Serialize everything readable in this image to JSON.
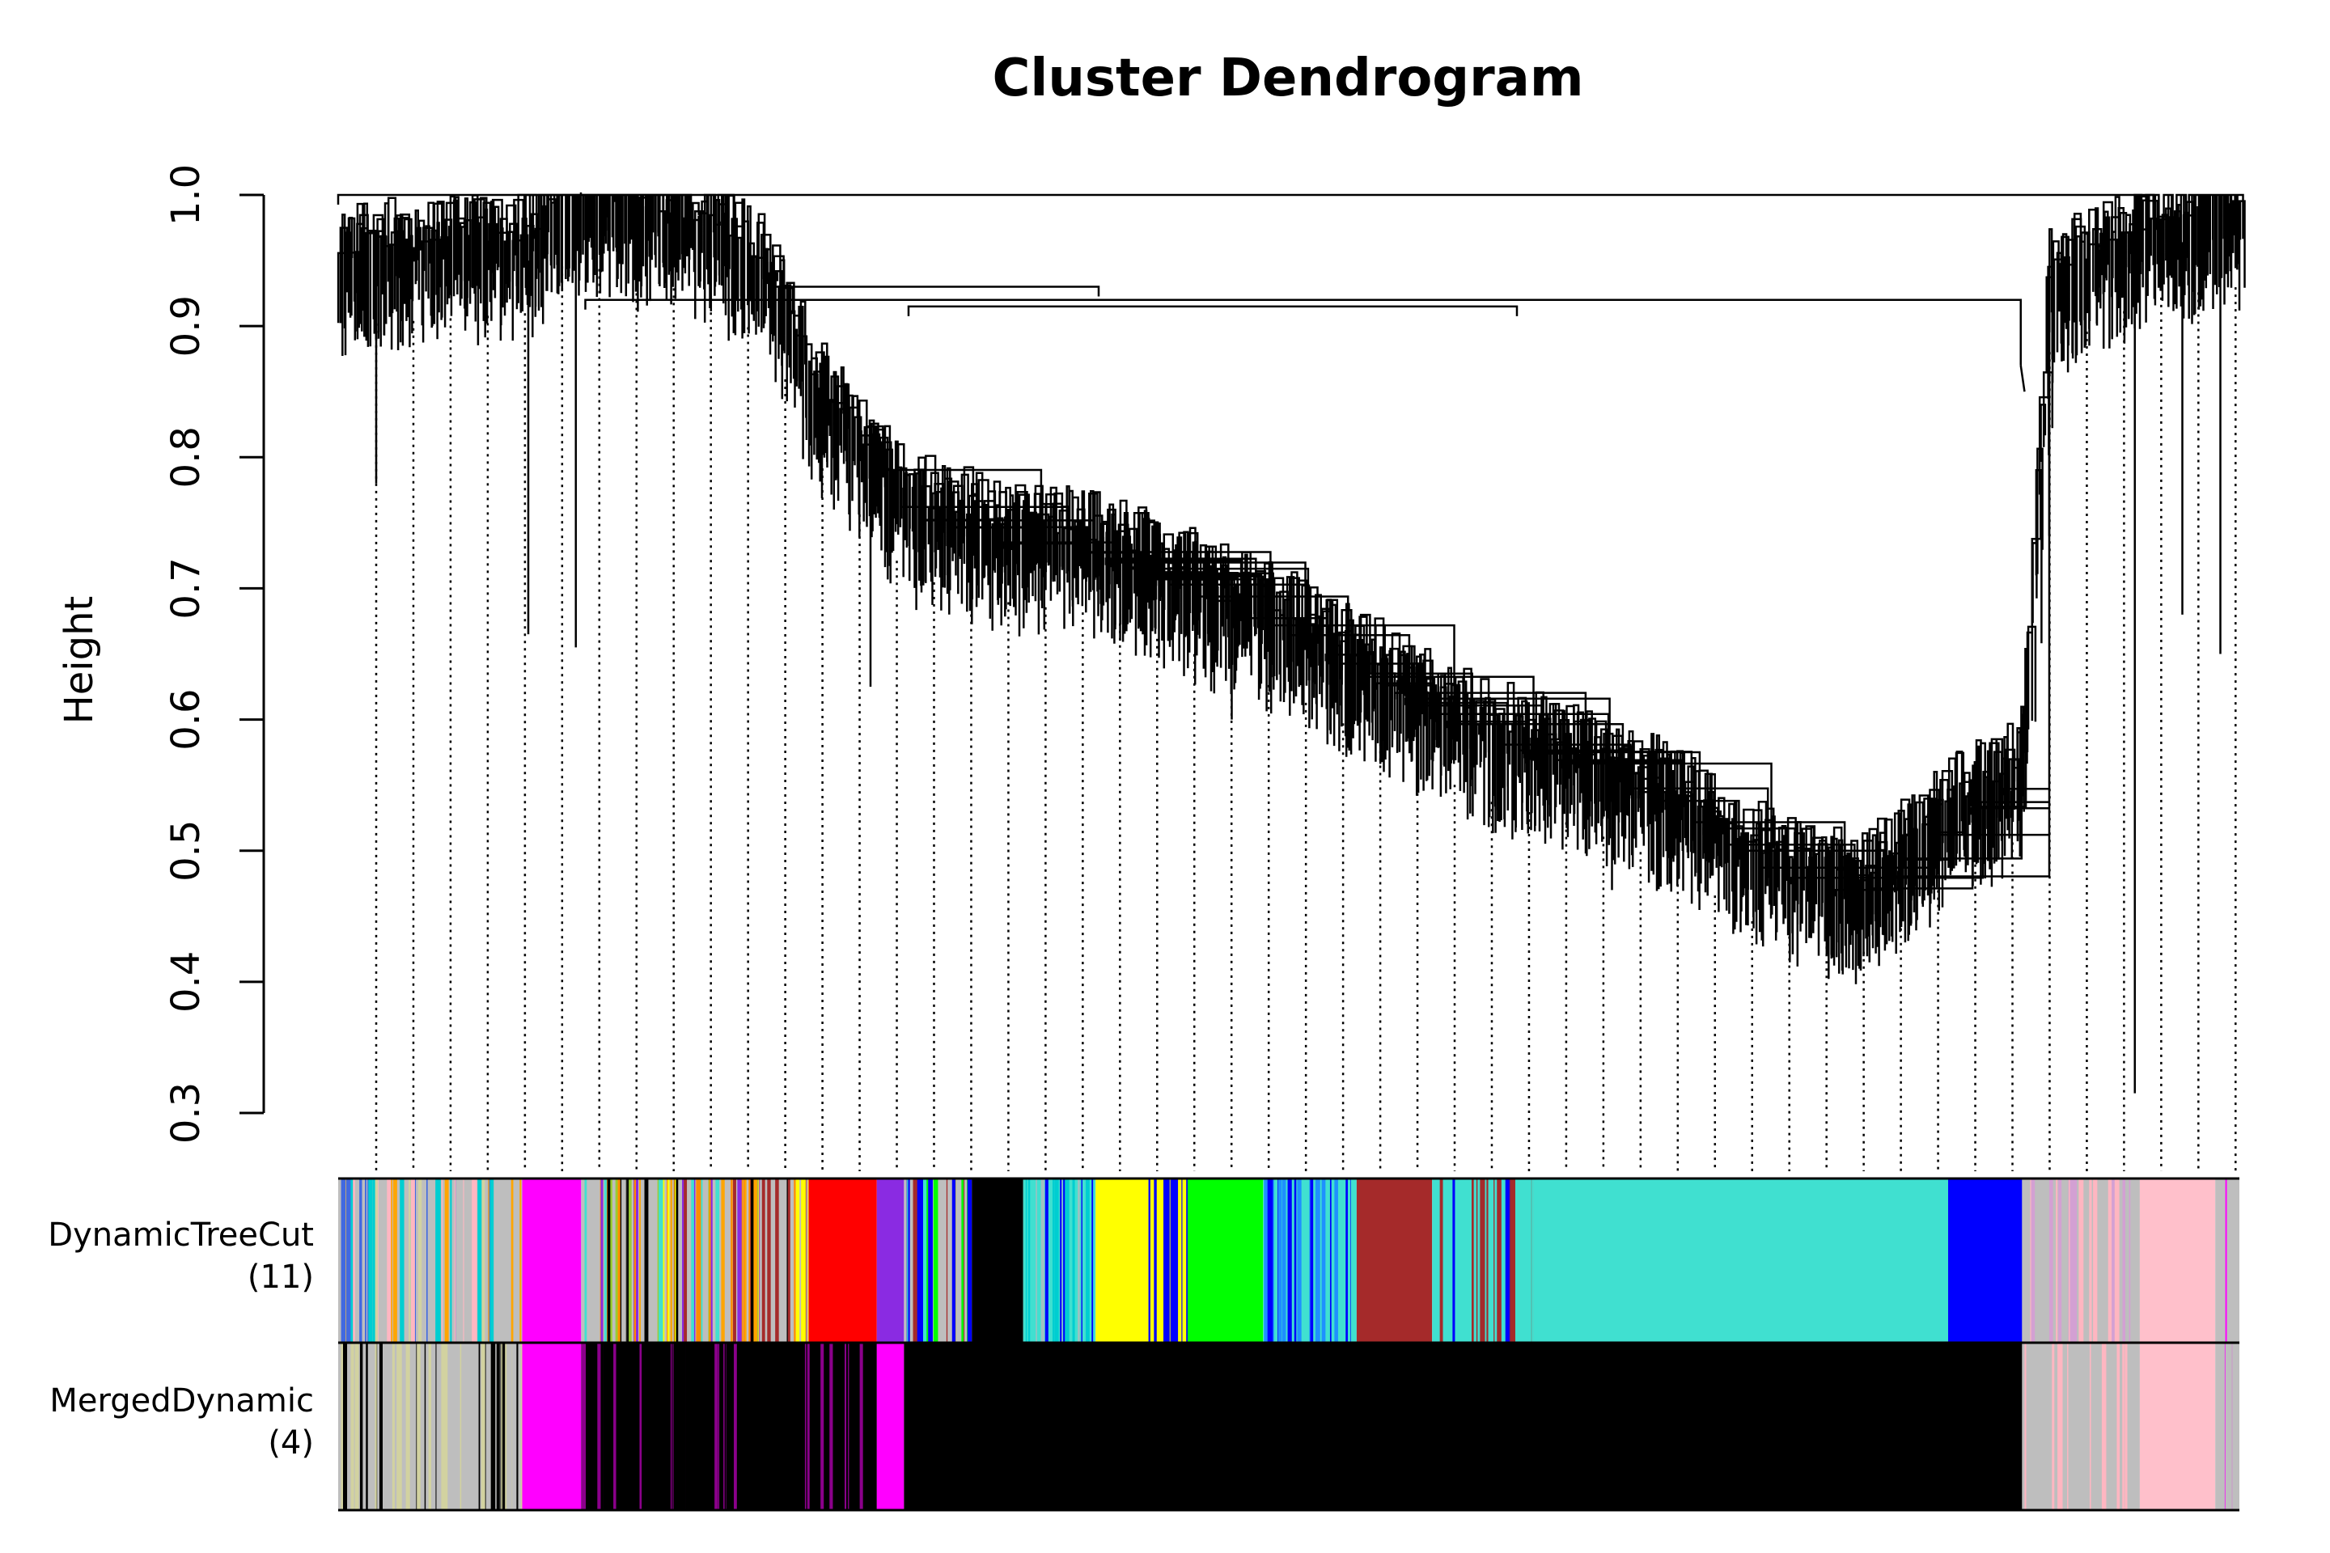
{
  "chart_data": {
    "type": "dendrogram",
    "title": "Cluster Dendrogram",
    "ylabel": "Height",
    "ylim": [
      0.3,
      1.0
    ],
    "y_ticks": [
      "0.3",
      "0.4",
      "0.5",
      "0.6",
      "0.7",
      "0.8",
      "0.9",
      "1.0"
    ],
    "tree": {
      "root_height": 1.0,
      "main_merges": [
        {
          "left": 0.0,
          "right": 0.955,
          "height": 1.0
        },
        {
          "left": 0.13,
          "right": 0.885,
          "height": 0.92
        },
        {
          "left": 0.23,
          "right": 0.4,
          "height": 0.93
        },
        {
          "left": 0.3,
          "right": 0.62,
          "height": 0.915
        }
      ],
      "outline": [
        [
          0.0,
          0.94
        ],
        [
          0.1,
          0.95
        ],
        [
          0.12,
          0.99
        ],
        [
          0.2,
          0.96
        ],
        [
          0.23,
          0.92
        ],
        [
          0.25,
          0.84
        ],
        [
          0.3,
          0.75
        ],
        [
          0.35,
          0.73
        ],
        [
          0.4,
          0.72
        ],
        [
          0.45,
          0.69
        ],
        [
          0.5,
          0.66
        ],
        [
          0.55,
          0.62
        ],
        [
          0.6,
          0.58
        ],
        [
          0.65,
          0.56
        ],
        [
          0.7,
          0.53
        ],
        [
          0.75,
          0.48
        ],
        [
          0.8,
          0.46
        ],
        [
          0.85,
          0.52
        ],
        [
          0.885,
          0.55
        ],
        [
          0.9,
          0.92
        ],
        [
          0.95,
          0.96
        ],
        [
          1.0,
          0.97
        ]
      ],
      "deep_leaves": [
        [
          0.02,
          0.78
        ],
        [
          0.1,
          0.665
        ],
        [
          0.125,
          0.655
        ],
        [
          0.28,
          0.625
        ],
        [
          0.41,
          0.73
        ],
        [
          0.47,
          0.6
        ],
        [
          0.55,
          0.56
        ],
        [
          0.67,
          0.47
        ],
        [
          0.765,
          0.455
        ],
        [
          0.8,
          0.45
        ],
        [
          0.88,
          0.525
        ],
        [
          0.9,
          0.74
        ],
        [
          0.945,
          0.315
        ],
        [
          0.97,
          0.68
        ],
        [
          0.99,
          0.65
        ]
      ]
    },
    "color_bands": [
      {
        "label": "DynamicTreeCut",
        "count": "(11)",
        "segments": [
          {
            "from": 0.0,
            "to": 0.0968,
            "color": "#bebebe",
            "mixed": [
              "#bebebe",
              "#d2d2a0",
              "#ffb6c1",
              "#ffa500",
              "#00ced1",
              "#4169e1"
            ]
          },
          {
            "from": 0.0968,
            "to": 0.1278,
            "color": "#ff00ff"
          },
          {
            "from": 0.1278,
            "to": 0.2476,
            "color": "#bebebe",
            "mixed": [
              "#000000",
              "#ffff00",
              "#9acd32",
              "#ff8c00",
              "#a52a2a",
              "#8a2be2",
              "#40e0d0",
              "#ffa500"
            ]
          },
          {
            "from": 0.2476,
            "to": 0.2833,
            "color": "#ff0000"
          },
          {
            "from": 0.2833,
            "to": 0.2976,
            "color": "#8a2be2"
          },
          {
            "from": 0.2976,
            "to": 0.3333,
            "color": "#bebebe",
            "mixed": [
              "#ffff00",
              "#40e0d0",
              "#0000ff",
              "#a52a2a",
              "#00ff00"
            ]
          },
          {
            "from": 0.3333,
            "to": 0.3603,
            "color": "#000000"
          },
          {
            "from": 0.3603,
            "to": 0.3984,
            "color": "#40e0d0",
            "mixed": [
              "#40e0d0",
              "#0000ff",
              "#00ced1",
              "#a0c0c0"
            ]
          },
          {
            "from": 0.3984,
            "to": 0.4262,
            "color": "#ffff00"
          },
          {
            "from": 0.4262,
            "to": 0.4468,
            "color": "#0000ff",
            "mixed": [
              "#0000ff",
              "#40e0d0",
              "#ffff00"
            ]
          },
          {
            "from": 0.4468,
            "to": 0.4865,
            "color": "#00ff00"
          },
          {
            "from": 0.4865,
            "to": 0.5357,
            "color": "#40e0d0",
            "mixed": [
              "#40e0d0",
              "#0000ff",
              "#1e90ff"
            ]
          },
          {
            "from": 0.5357,
            "to": 0.5754,
            "color": "#a52a2a"
          },
          {
            "from": 0.5754,
            "to": 0.6286,
            "color": "#40e0d0",
            "mixed": [
              "#40e0d0",
              "#0000ff",
              "#a52a2a"
            ]
          },
          {
            "from": 0.6286,
            "to": 0.8468,
            "color": "#40e0d0"
          },
          {
            "from": 0.8468,
            "to": 0.8857,
            "color": "#0000ff"
          },
          {
            "from": 0.8857,
            "to": 0.9476,
            "color": "#bebebe",
            "mixed": [
              "#bebebe",
              "#ffb6c1",
              "#d3a0d3"
            ]
          },
          {
            "from": 0.9476,
            "to": 0.9873,
            "color": "#ffc0cb"
          },
          {
            "from": 0.9873,
            "to": 1.0,
            "color": "#bebebe",
            "mixed": [
              "#bebebe",
              "#ff00ff"
            ]
          }
        ]
      },
      {
        "label": "MergedDynamic",
        "count": "(4)",
        "segments": [
          {
            "from": 0.0,
            "to": 0.0968,
            "color": "#bebebe",
            "mixed": [
              "#bebebe",
              "#000000",
              "#d2d2a0"
            ]
          },
          {
            "from": 0.0968,
            "to": 0.1278,
            "color": "#ff00ff"
          },
          {
            "from": 0.1278,
            "to": 0.2833,
            "color": "#000000",
            "mixed": [
              "#000000",
              "#000000",
              "#000000",
              "#8b008b"
            ]
          },
          {
            "from": 0.2833,
            "to": 0.2976,
            "color": "#ff00ff"
          },
          {
            "from": 0.2976,
            "to": 0.8857,
            "color": "#000000"
          },
          {
            "from": 0.8857,
            "to": 0.9476,
            "color": "#bebebe",
            "mixed": [
              "#bebebe",
              "#ffb6c1"
            ]
          },
          {
            "from": 0.9476,
            "to": 0.9873,
            "color": "#ffc0cb"
          },
          {
            "from": 0.9873,
            "to": 1.0,
            "color": "#bebebe",
            "mixed": [
              "#bebebe",
              "#ff00ff"
            ]
          }
        ]
      }
    ]
  }
}
